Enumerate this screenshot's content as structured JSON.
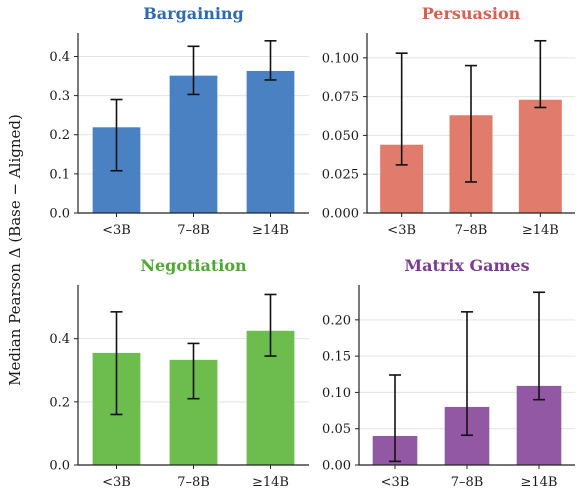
{
  "figure": {
    "ylabel": "Median Pearson Δ (Base − Aligned)"
  },
  "chart_data": [
    {
      "type": "bar",
      "title": "Bargaining",
      "color": "#3f7abf",
      "title_color": "#2e6aad",
      "categories": [
        "<3B",
        "7–8B",
        "≥14B"
      ],
      "values": [
        0.219,
        0.351,
        0.363
      ],
      "err_low": [
        0.108,
        0.303,
        0.34
      ],
      "err_high": [
        0.29,
        0.426,
        0.44
      ],
      "ylim": [
        0,
        0.46
      ],
      "yticks": [
        0.0,
        0.1,
        0.2,
        0.3,
        0.4
      ],
      "ytick_labels": [
        "0.0",
        "0.1",
        "0.2",
        "0.3",
        "0.4"
      ],
      "xlabel": "",
      "ylabel": ""
    },
    {
      "type": "bar",
      "title": "Persuasion",
      "color": "#df7565",
      "title_color": "#d9604f",
      "categories": [
        "<3B",
        "7–8B",
        "≥14B"
      ],
      "values": [
        0.044,
        0.063,
        0.073
      ],
      "err_low": [
        0.031,
        0.02,
        0.068
      ],
      "err_high": [
        0.103,
        0.095,
        0.111
      ],
      "ylim": [
        0,
        0.116
      ],
      "yticks": [
        0.0,
        0.025,
        0.05,
        0.075,
        0.1
      ],
      "ytick_labels": [
        "0.000",
        "0.025",
        "0.050",
        "0.075",
        "0.100"
      ],
      "xlabel": "",
      "ylabel": ""
    },
    {
      "type": "bar",
      "title": "Negotiation",
      "color": "#64b844",
      "title_color": "#4daa2e",
      "categories": [
        "<3B",
        "7–8B",
        "≥14B"
      ],
      "values": [
        0.355,
        0.333,
        0.425
      ],
      "err_low": [
        0.16,
        0.21,
        0.345
      ],
      "err_high": [
        0.485,
        0.385,
        0.54
      ],
      "ylim": [
        0,
        0.57
      ],
      "yticks": [
        0.0,
        0.2,
        0.4
      ],
      "ytick_labels": [
        "0.0",
        "0.2",
        "0.4"
      ],
      "xlabel": "",
      "ylabel": ""
    },
    {
      "type": "bar",
      "title": "Matrix Games",
      "color": "#8c4f9f",
      "title_color": "#7b3d93",
      "categories": [
        "<3B",
        "7–8B",
        "≥14B"
      ],
      "values": [
        0.04,
        0.08,
        0.109
      ],
      "err_low": [
        0.005,
        0.041,
        0.09
      ],
      "err_high": [
        0.124,
        0.211,
        0.238
      ],
      "ylim": [
        0,
        0.248
      ],
      "yticks": [
        0.0,
        0.05,
        0.1,
        0.15,
        0.2
      ],
      "ytick_labels": [
        "0.00",
        "0.05",
        "0.10",
        "0.15",
        "0.20"
      ],
      "xlabel": "",
      "ylabel": ""
    }
  ]
}
